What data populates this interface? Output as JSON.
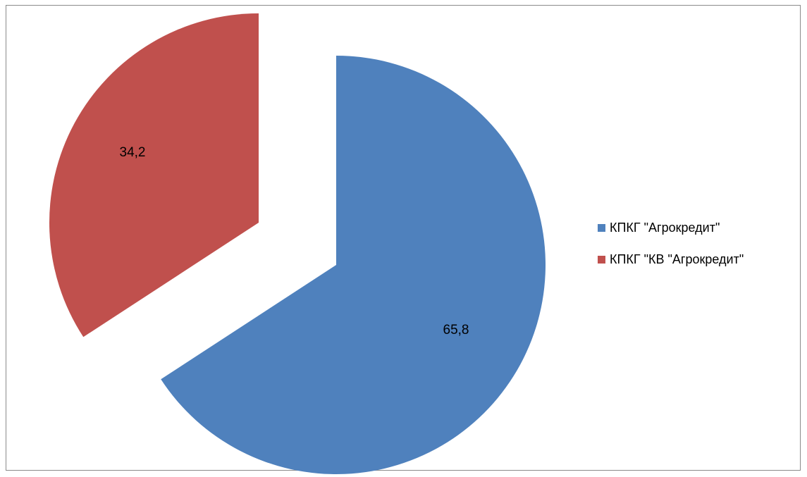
{
  "chart_data": {
    "type": "pie",
    "categories": [
      "КПКГ \"Агрокредит\"",
      "КПКГ \"КВ \"Агрокредит\""
    ],
    "values": [
      65.8,
      34.2
    ],
    "data_labels": [
      "65,8",
      "34,2"
    ],
    "colors": [
      "#4F81BD",
      "#C0504D"
    ],
    "title": "",
    "legend_placement": "right",
    "exploded": true,
    "start_angle_deg": 0,
    "direction": "clockwise"
  }
}
